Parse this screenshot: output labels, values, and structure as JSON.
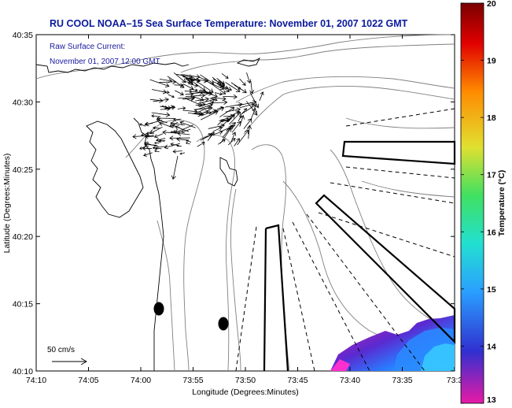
{
  "header": {
    "title": "RU COOL  NOAA–15  Sea Surface Temperature:  November 01, 2007 1022 GMT"
  },
  "legend_current": {
    "line1": "Raw Surface Current:",
    "line2": "November 01, 2007 12:00 GMT",
    "scale_label": "50 cm/s"
  },
  "axes": {
    "xlabel": "Longitude (Degrees:Minutes)",
    "ylabel": "Latitude (Degrees:Minutes)",
    "xticks": [
      "74:10",
      "74:05",
      "74:00",
      "73:55",
      "73:50",
      "73:45",
      "73:40",
      "73:35",
      "73:3"
    ],
    "yticks": [
      "40:35",
      "40:30",
      "40:25",
      "40:20",
      "40:15",
      "40:10"
    ]
  },
  "colorbar": {
    "label": "Temperature (°C)",
    "ticks": [
      "20",
      "19",
      "18",
      "17",
      "16",
      "15",
      "14",
      "13"
    ],
    "min": 13,
    "max": 20,
    "colors": [
      "#e81aa6",
      "#3030d0",
      "#2aa0ff",
      "#22e0d0",
      "#40e060",
      "#e0e030",
      "#ff8a00",
      "#e00000",
      "#7a0000"
    ]
  },
  "colors": {
    "title": "#0a1a9c",
    "legend_text": "#1a1aa0",
    "map_lines": "#777777",
    "frame": "#000000"
  }
}
